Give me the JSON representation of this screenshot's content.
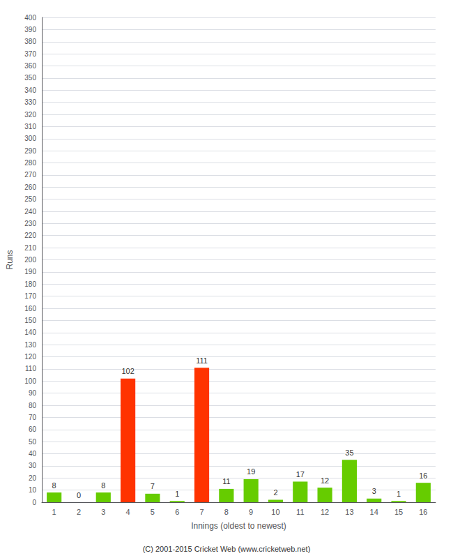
{
  "chart_data": {
    "type": "bar",
    "categories": [
      "1",
      "2",
      "3",
      "4",
      "5",
      "6",
      "7",
      "8",
      "9",
      "10",
      "11",
      "12",
      "13",
      "14",
      "15",
      "16"
    ],
    "values": [
      8,
      0,
      8,
      102,
      7,
      1,
      111,
      11,
      19,
      2,
      17,
      12,
      35,
      3,
      1,
      16
    ],
    "colors": [
      "#66cc00",
      "#66cc00",
      "#66cc00",
      "#ff3300",
      "#66cc00",
      "#66cc00",
      "#ff3300",
      "#66cc00",
      "#66cc00",
      "#66cc00",
      "#66cc00",
      "#66cc00",
      "#66cc00",
      "#66cc00",
      "#66cc00",
      "#66cc00"
    ],
    "xlabel": "Innings (oldest to newest)",
    "ylabel": "Runs",
    "ylim": [
      0,
      400
    ],
    "yticks": [
      0,
      10,
      20,
      30,
      40,
      50,
      60,
      70,
      80,
      90,
      100,
      110,
      120,
      130,
      140,
      150,
      160,
      170,
      180,
      190,
      200,
      210,
      220,
      230,
      240,
      250,
      260,
      270,
      280,
      290,
      300,
      310,
      320,
      330,
      340,
      350,
      360,
      370,
      380,
      390,
      400
    ],
    "grid": true,
    "data_labels": true,
    "annotations": [
      "(C) 2001-2015 Cricket Web (www.cricketweb.net)"
    ]
  }
}
